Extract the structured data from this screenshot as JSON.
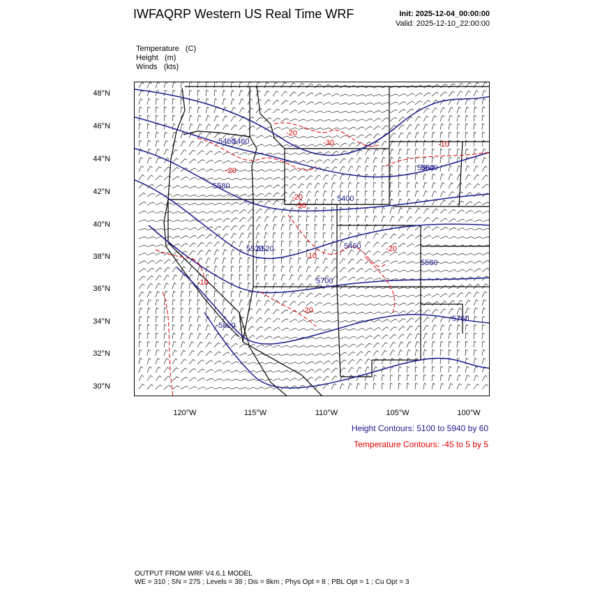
{
  "header": {
    "title": "IWFAQRP Western US Real Time WRF",
    "init": "Init: 2025-12-04_00:00:00",
    "valid": "Valid: 2025-12-10_22:00:00"
  },
  "fields": [
    "Temperature   (C)",
    "Height   (m)",
    "Winds   (kts)"
  ],
  "map": {
    "lat_labels": [
      "48°N",
      "46°N",
      "44°N",
      "42°N",
      "40°N",
      "38°N",
      "36°N",
      "34°N",
      "32°N",
      "30°N"
    ],
    "lon_labels": [
      "120°W",
      "115°W",
      "110°W",
      "105°W",
      "100°W"
    ],
    "height_contour_labels": [
      "5460",
      "5580",
      "5400",
      "5580",
      "5460",
      "5520",
      "5580",
      "5700",
      "5820",
      "5460",
      "5520",
      "5640",
      "5760"
    ],
    "temp_contour_labels": [
      "-20",
      "-30",
      "-20",
      "-20",
      "-30",
      "-10",
      "-20",
      "-10",
      "-20",
      "-10"
    ],
    "colors": {
      "height": "#1a1a8c",
      "temperature": "#e00000",
      "barbs": "#000000",
      "borders": "#000000"
    }
  },
  "legend": {
    "height": "Height Contours: 5100 to 5940 by 60",
    "temperature": "Temperature Contours: -45 to 5 by 5"
  },
  "footer": {
    "line1": "OUTPUT FROM WRF V4.6.1 MODEL",
    "line2": "WE = 310 ; SN = 275 ; Levels = 38 ; Dis = 8km ; Phys Opt = 8 ; PBL Opt = 1 ; Cu Opt = 3"
  }
}
